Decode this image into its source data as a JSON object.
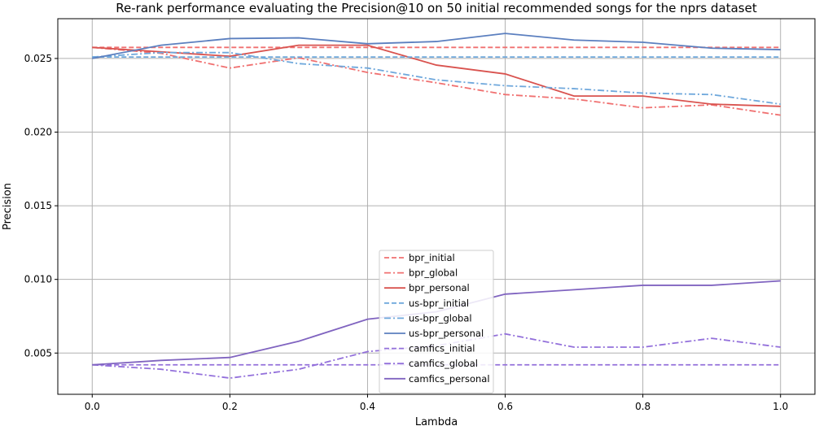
{
  "chart_data": {
    "type": "line",
    "title": "Re-rank performance evaluating the Precision@10 on 50 initial recommended songs for the nprs dataset",
    "xlabel": "Lambda",
    "ylabel": "Precision",
    "xlim": [
      -0.05,
      1.05
    ],
    "ylim": [
      0.0022,
      0.0277
    ],
    "x_ticks": [
      0.0,
      0.2,
      0.4,
      0.6,
      0.8,
      1.0
    ],
    "x_tick_labels": [
      "0.0",
      "0.2",
      "0.4",
      "0.6",
      "0.8",
      "1.0"
    ],
    "y_ticks": [
      0.005,
      0.01,
      0.015,
      0.02,
      0.025
    ],
    "y_tick_labels": [
      "0.005",
      "0.010",
      "0.015",
      "0.020",
      "0.025"
    ],
    "grid": true,
    "legend_position": "bottom-center",
    "x": [
      0.0,
      0.1,
      0.2,
      0.3,
      0.4,
      0.5,
      0.6,
      0.7,
      0.8,
      0.9,
      1.0
    ],
    "series": [
      {
        "name": "bpr_initial",
        "color": "#f07070",
        "dash": "dashed",
        "values": [
          0.02575,
          0.02575,
          0.02575,
          0.02575,
          0.02575,
          0.02575,
          0.02575,
          0.02575,
          0.02575,
          0.02575,
          0.02575
        ]
      },
      {
        "name": "bpr_global",
        "color": "#f07070",
        "dash": "dashdot",
        "values": [
          0.02575,
          0.02535,
          0.02435,
          0.02505,
          0.02405,
          0.02335,
          0.02255,
          0.02225,
          0.02165,
          0.02185,
          0.02115
        ]
      },
      {
        "name": "bpr_personal",
        "color": "#d9534f",
        "dash": "solid",
        "values": [
          0.02575,
          0.02545,
          0.02515,
          0.0259,
          0.0259,
          0.02455,
          0.02395,
          0.02245,
          0.02245,
          0.0219,
          0.02175
        ]
      },
      {
        "name": "us-bpr_initial",
        "color": "#6fa8dc",
        "dash": "dashed",
        "values": [
          0.0251,
          0.0251,
          0.0251,
          0.0251,
          0.0251,
          0.0251,
          0.0251,
          0.0251,
          0.0251,
          0.0251,
          0.0251
        ]
      },
      {
        "name": "us-bpr_global",
        "color": "#6fa8dc",
        "dash": "dashdot",
        "values": [
          0.0251,
          0.0254,
          0.0254,
          0.02465,
          0.02435,
          0.02355,
          0.02315,
          0.02295,
          0.02265,
          0.02255,
          0.0219
        ]
      },
      {
        "name": "us-bpr_personal",
        "color": "#5b7fbf",
        "dash": "solid",
        "values": [
          0.025,
          0.0259,
          0.02635,
          0.0264,
          0.026,
          0.02615,
          0.0267,
          0.02625,
          0.0261,
          0.0257,
          0.0256
        ]
      },
      {
        "name": "camfics_initial",
        "color": "#9370db",
        "dash": "dashed",
        "values": [
          0.0042,
          0.0042,
          0.0042,
          0.0042,
          0.0042,
          0.0042,
          0.0042,
          0.0042,
          0.0042,
          0.0042,
          0.0042
        ]
      },
      {
        "name": "camfics_global",
        "color": "#9370db",
        "dash": "dashdot",
        "values": [
          0.0042,
          0.0039,
          0.0033,
          0.0039,
          0.0051,
          0.0055,
          0.0063,
          0.0054,
          0.0054,
          0.006,
          0.0054
        ]
      },
      {
        "name": "camfics_personal",
        "color": "#8064c0",
        "dash": "solid",
        "values": [
          0.0042,
          0.0045,
          0.0047,
          0.0058,
          0.0073,
          0.0078,
          0.009,
          0.0093,
          0.0096,
          0.0096,
          0.0099
        ]
      }
    ]
  }
}
